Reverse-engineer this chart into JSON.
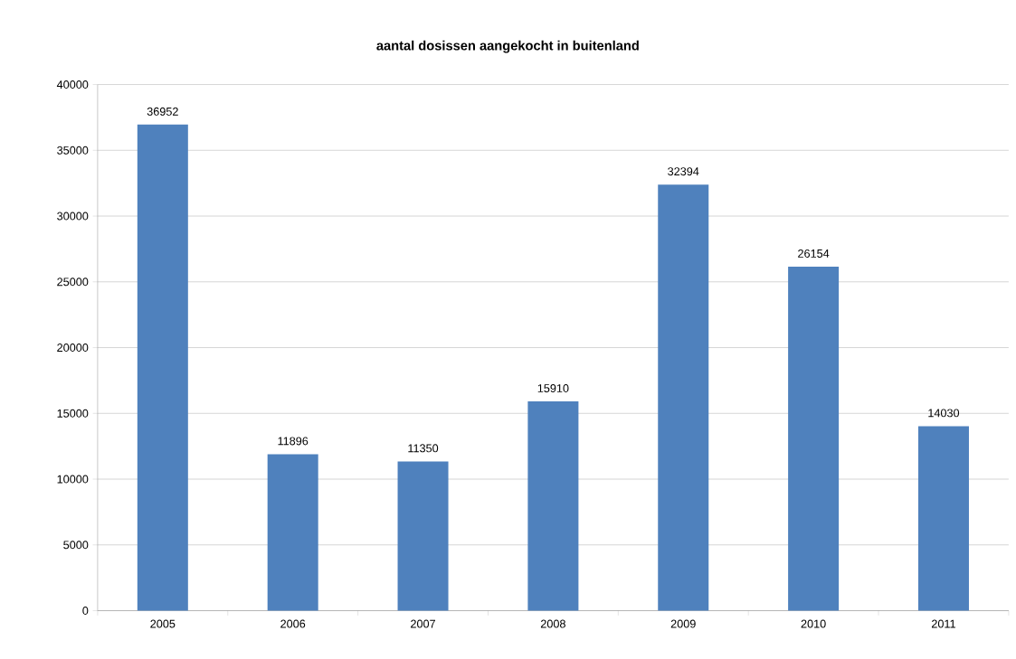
{
  "chart_data": {
    "type": "bar",
    "title": "aantal dosissen aangekocht in buitenland",
    "categories": [
      "2005",
      "2006",
      "2007",
      "2008",
      "2009",
      "2010",
      "2011"
    ],
    "values": [
      36952,
      11896,
      11350,
      15910,
      32394,
      26154,
      14030
    ],
    "color": "#4f81bd",
    "ylim": [
      0,
      40000
    ],
    "yticks": [
      0,
      5000,
      10000,
      15000,
      20000,
      25000,
      30000,
      35000,
      40000
    ],
    "grid": "y",
    "data_labels": true
  }
}
